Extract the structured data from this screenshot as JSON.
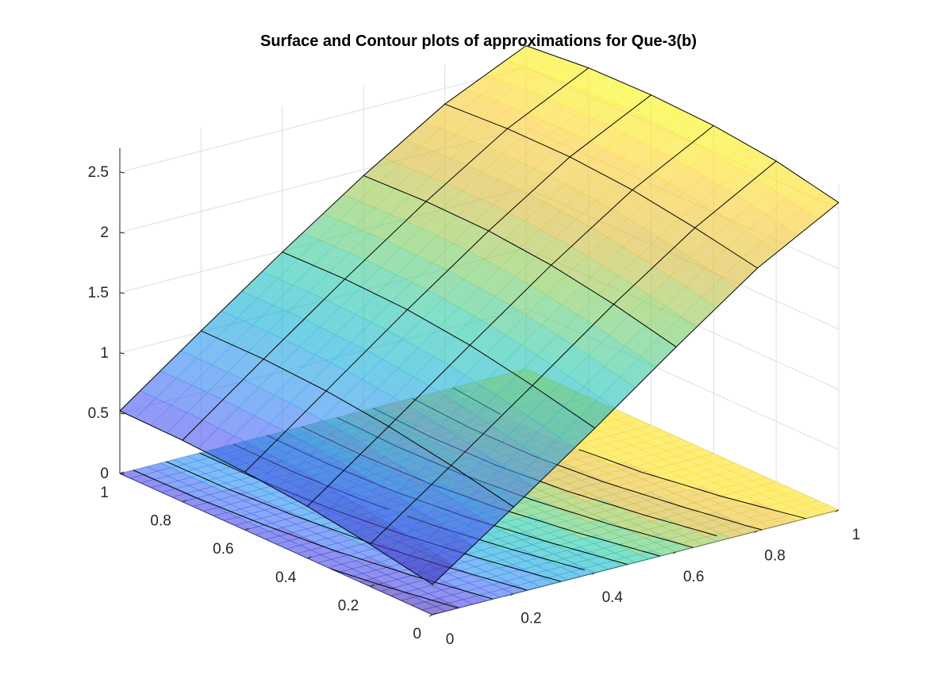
{
  "chart_data": {
    "type": "surface+contour",
    "title": "Surface and Contour plots of approximations for Que-3(b)",
    "xlabel": "",
    "ylabel": "",
    "zlabel": "",
    "x": [
      0,
      0.2,
      0.4,
      0.6,
      0.8,
      1
    ],
    "y": [
      0,
      0.2,
      0.4,
      0.6,
      0.8,
      1
    ],
    "z": [
      [
        0.25,
        0.72,
        1.2,
        1.7,
        2.18,
        2.55
      ],
      [
        0.35,
        0.83,
        1.32,
        1.82,
        2.28,
        2.66
      ],
      [
        0.43,
        0.92,
        1.42,
        1.91,
        2.36,
        2.72
      ],
      [
        0.48,
        0.98,
        1.48,
        1.96,
        2.4,
        2.74
      ],
      [
        0.51,
        1.01,
        1.5,
        1.97,
        2.4,
        2.73
      ],
      [
        0.52,
        1.01,
        1.49,
        1.95,
        2.37,
        2.68
      ]
    ],
    "contour_levels": [
      0.4,
      0.6,
      0.8,
      1.0,
      1.2,
      1.4,
      1.6,
      1.8,
      2.0,
      2.2,
      2.4
    ],
    "xlim": [
      0,
      1
    ],
    "ylim": [
      0,
      1
    ],
    "zlim": [
      0,
      2.7
    ],
    "xticks": [
      "0",
      "0.2",
      "0.4",
      "0.6",
      "0.8",
      "1"
    ],
    "yticks": [
      "0",
      "0.2",
      "0.4",
      "0.6",
      "0.8",
      "1"
    ],
    "zticks": [
      "0",
      "0.5",
      "1",
      "1.5",
      "2",
      "2.5"
    ],
    "colormap": "parula",
    "face_alpha": 0.6,
    "grid": true,
    "colors": {
      "low": "#3e26a8",
      "mid": "#2bc9a8",
      "high": "#f9fb0e",
      "background": "#ffffff",
      "grid": "#dfdfdf"
    }
  }
}
